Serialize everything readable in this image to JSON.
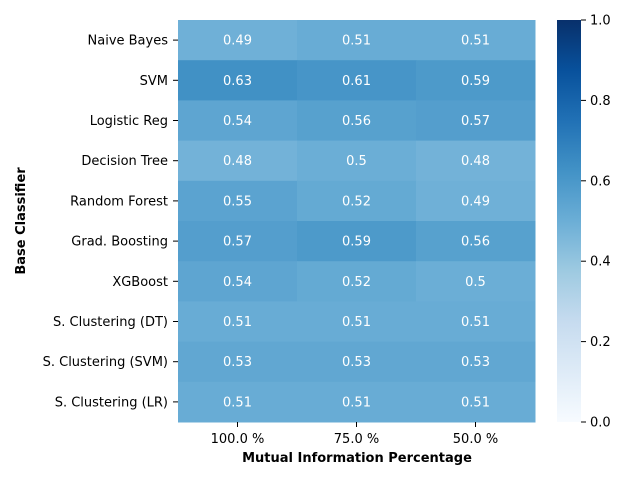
{
  "chart_data": {
    "type": "heatmap",
    "title": "",
    "xlabel": "Mutual Information Percentage",
    "ylabel": "Base Classifier",
    "x_categories": [
      "100.0 %",
      "75.0 %",
      "50.0 %"
    ],
    "y_categories": [
      "Naive Bayes",
      "SVM",
      "Logistic Reg",
      "Decision Tree",
      "Random Forest",
      "Grad. Boosting",
      "XGBoost",
      "S. Clustering (DT)",
      "S. Clustering (SVM)",
      "S. Clustering (LR)"
    ],
    "values": [
      [
        0.49,
        0.51,
        0.51
      ],
      [
        0.63,
        0.61,
        0.59
      ],
      [
        0.54,
        0.56,
        0.57
      ],
      [
        0.48,
        0.5,
        0.48
      ],
      [
        0.55,
        0.52,
        0.49
      ],
      [
        0.57,
        0.59,
        0.56
      ],
      [
        0.54,
        0.52,
        0.5
      ],
      [
        0.51,
        0.51,
        0.51
      ],
      [
        0.53,
        0.53,
        0.53
      ],
      [
        0.51,
        0.51,
        0.51
      ]
    ],
    "value_labels": [
      [
        "0.49",
        "0.51",
        "0.51"
      ],
      [
        "0.63",
        "0.61",
        "0.59"
      ],
      [
        "0.54",
        "0.56",
        "0.57"
      ],
      [
        "0.48",
        "0.5",
        "0.48"
      ],
      [
        "0.55",
        "0.52",
        "0.49"
      ],
      [
        "0.57",
        "0.59",
        "0.56"
      ],
      [
        "0.54",
        "0.52",
        "0.5"
      ],
      [
        "0.51",
        "0.51",
        "0.51"
      ],
      [
        "0.53",
        "0.53",
        "0.53"
      ],
      [
        "0.51",
        "0.51",
        "0.51"
      ]
    ],
    "colorbar": {
      "range": [
        0,
        1
      ],
      "ticks": [
        0.0,
        0.2,
        0.4,
        0.6,
        0.8,
        1.0
      ],
      "tick_labels": [
        "0.0",
        "0.2",
        "0.4",
        "0.6",
        "0.8",
        "1.0"
      ],
      "colormap": "Blues",
      "position": "right"
    },
    "cell_text_color": "#ffffff",
    "grid": false
  }
}
